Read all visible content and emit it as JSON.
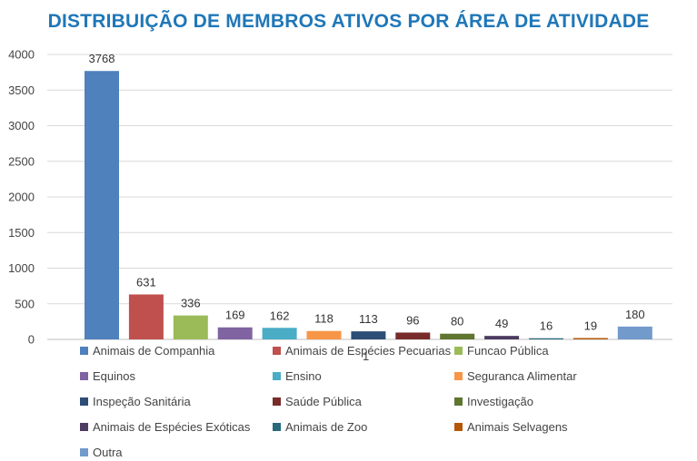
{
  "chart_data": {
    "type": "bar",
    "title": "DISTRIBUIÇÃO DE MEMBROS ATIVOS POR ÁREA DE ATIVIDADE",
    "xlabel": "",
    "ylabel": "",
    "ylim": [
      0,
      4000
    ],
    "yticks": [
      "0",
      "500",
      "1000",
      "1500",
      "2000",
      "2500",
      "3000",
      "3500",
      "4000"
    ],
    "grid": true,
    "legend_position": "bottom",
    "stray_label": "1",
    "series": [
      {
        "name": "Animais de Companhia",
        "value": 3768,
        "label": "3768",
        "color": "#4f81bd"
      },
      {
        "name": "Animais de Espécies Pecuarias",
        "value": 631,
        "label": "631",
        "color": "#c0504d"
      },
      {
        "name": "Funcao Pública",
        "value": 336,
        "label": "336",
        "color": "#9bbb59"
      },
      {
        "name": "Equinos",
        "value": 169,
        "label": "169",
        "color": "#8064a2"
      },
      {
        "name": "Ensino",
        "value": 162,
        "label": "162",
        "color": "#4bacc6"
      },
      {
        "name": "Seguranca Alimentar",
        "value": 118,
        "label": "118",
        "color": "#f79646"
      },
      {
        "name": "Inspeção Sanitária",
        "value": 113,
        "label": "113",
        "color": "#2c4d75"
      },
      {
        "name": "Saúde Pública",
        "value": 96,
        "label": "96",
        "color": "#772c2a"
      },
      {
        "name": "Investigação",
        "value": 80,
        "label": "80",
        "color": "#5f7530"
      },
      {
        "name": "Animais de Espécies Exóticas",
        "value": 49,
        "label": "49",
        "color": "#4d3b62"
      },
      {
        "name": "Animais de Zoo",
        "value": 16,
        "label": "16",
        "color": "#276a7c"
      },
      {
        "name": "Animais Selvagens",
        "value": 19,
        "label": "19",
        "color": "#b65708"
      },
      {
        "name": "Outra",
        "value": 180,
        "label": "180",
        "color": "#729aca"
      }
    ]
  }
}
